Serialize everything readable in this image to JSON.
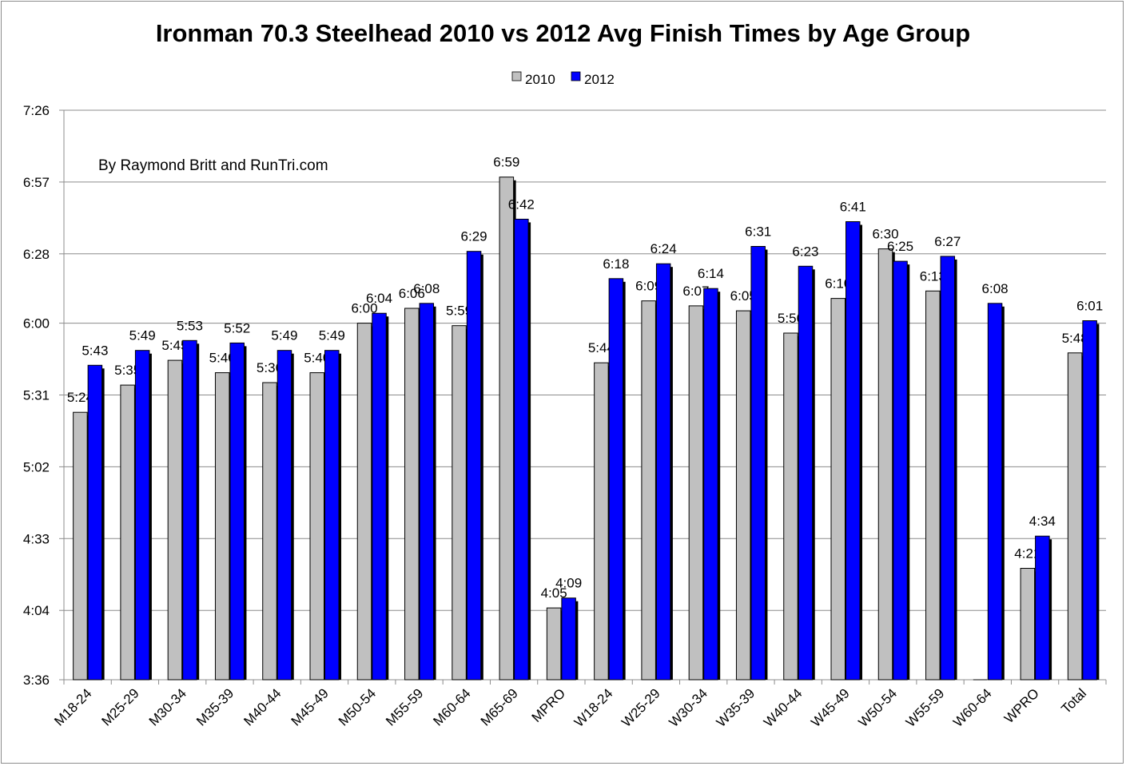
{
  "chart_data": {
    "type": "bar",
    "title": "Ironman 70.3 Steelhead 2010 vs 2012 Avg Finish Times by Age Group",
    "annotation": "By Raymond Britt and RunTri.com",
    "legend_position": "top-center",
    "grid": true,
    "y_ticks": [
      "3:36",
      "4:04",
      "4:33",
      "5:02",
      "5:31",
      "6:00",
      "6:28",
      "6:57",
      "7:26"
    ],
    "ylim": [
      "3:36",
      "7:26"
    ],
    "categories": [
      "M18-24",
      "M25-29",
      "M30-34",
      "M35-39",
      "M40-44",
      "M45-49",
      "M50-54",
      "M55-59",
      "M60-64",
      "M65-69",
      "MPRO",
      "W18-24",
      "W25-29",
      "W30-34",
      "W35-39",
      "W40-44",
      "W45-49",
      "W50-54",
      "W55-59",
      "W60-64",
      "WPRO",
      "Total"
    ],
    "series": [
      {
        "name": "2010",
        "color": "#c0c0c0",
        "values": [
          "5:24",
          "5:35",
          "5:45",
          "5:40",
          "5:36",
          "5:40",
          "6:00",
          "6:06",
          "5:59",
          "6:59",
          "4:05",
          "5:44",
          "6:09",
          "6:07",
          "6:05",
          "5:56",
          "6:10",
          "6:30",
          "6:13",
          null,
          "4:21",
          "5:48"
        ]
      },
      {
        "name": "2012",
        "color": "#0000ff",
        "values": [
          "5:43",
          "5:49",
          "5:53",
          "5:52",
          "5:49",
          "5:49",
          "6:04",
          "6:08",
          "6:29",
          "6:42",
          "4:09",
          "6:18",
          "6:24",
          "6:14",
          "6:31",
          "6:23",
          "6:41",
          "6:25",
          "6:27",
          "6:08",
          "4:34",
          "6:01"
        ]
      }
    ]
  }
}
